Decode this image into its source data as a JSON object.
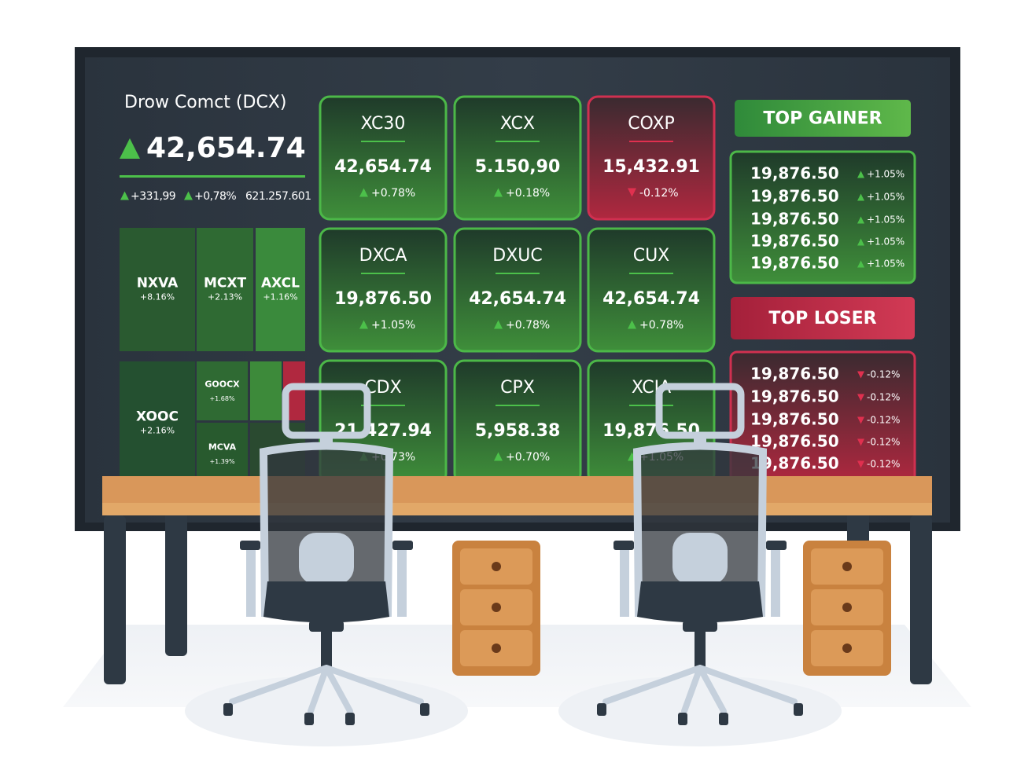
{
  "header": {
    "name": "Drow Comct (DCX)",
    "price": "42,654.74",
    "stats": [
      "+331,99",
      "+0,78%",
      "621.257.601"
    ]
  },
  "heatmap": [
    {
      "label": "NXVA",
      "change": "+8.16%"
    },
    {
      "label": "MCXT",
      "change": "+2.13%"
    },
    {
      "label": "AXCL",
      "change": "+1.16%"
    },
    {
      "label": "XOOC",
      "change": "+2.16%"
    },
    {
      "label": "GOOCX",
      "change": "+1.68%"
    },
    {
      "label": "MCVA",
      "change": "+1.39%"
    }
  ],
  "tickers": [
    {
      "name": "XC30",
      "price": "42,654.74",
      "change": "+0.78%",
      "trend": "up"
    },
    {
      "name": "XCX",
      "price": "5.150,90",
      "change": "+0.18%",
      "trend": "up"
    },
    {
      "name": "COXP",
      "price": "15,432.91",
      "change": "-0.12%",
      "trend": "down"
    },
    {
      "name": "DXCA",
      "price": "19,876.50",
      "change": "+1.05%",
      "trend": "up"
    },
    {
      "name": "DXUC",
      "price": "42,654.74",
      "change": "+0.78%",
      "trend": "up"
    },
    {
      "name": "CUX",
      "price": "42,654.74",
      "change": "+0.78%",
      "trend": "up"
    },
    {
      "name": "CDX",
      "price": "21,427.94",
      "change": "+0.73%",
      "trend": "up"
    },
    {
      "name": "CPX",
      "price": "5,958.38",
      "change": "+0.70%",
      "trend": "up"
    },
    {
      "name": "XCIA",
      "price": "19,876.50",
      "change": "+1.05%",
      "trend": "up"
    }
  ],
  "top_gainer": {
    "title": "TOP GAINER",
    "rows": [
      {
        "price": "19,876.50",
        "change": "+1.05%"
      },
      {
        "price": "19,876.50",
        "change": "+1.05%"
      },
      {
        "price": "19,876.50",
        "change": "+1.05%"
      },
      {
        "price": "19,876.50",
        "change": "+1.05%"
      },
      {
        "price": "19,876.50",
        "change": "+1.05%"
      }
    ]
  },
  "top_loser": {
    "title": "TOP LOSER",
    "rows": [
      {
        "price": "19,876.50",
        "change": "-0.12%"
      },
      {
        "price": "19,876.50",
        "change": "-0.12%"
      },
      {
        "price": "19,876.50",
        "change": "-0.12%"
      },
      {
        "price": "19,876.50",
        "change": "-0.12%"
      },
      {
        "price": "19,876.50",
        "change": "-0.12%"
      }
    ]
  }
}
